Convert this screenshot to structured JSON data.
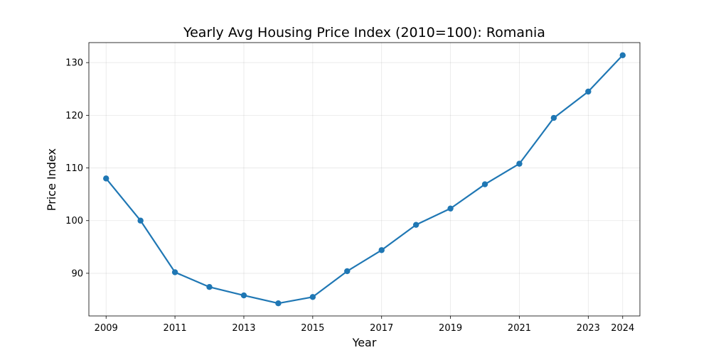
{
  "chart_data": {
    "type": "line",
    "title": "Yearly Avg Housing Price Index (2010=100): Romania",
    "xlabel": "Year",
    "ylabel": "Price Index",
    "x": [
      2009,
      2010,
      2011,
      2012,
      2013,
      2014,
      2015,
      2016,
      2017,
      2018,
      2019,
      2020,
      2021,
      2022,
      2023,
      2024
    ],
    "series": [
      {
        "values": [
          108.0,
          100.0,
          90.2,
          87.4,
          85.8,
          84.3,
          85.5,
          90.4,
          94.4,
          99.2,
          102.3,
          106.9,
          110.8,
          119.5,
          124.5,
          131.4
        ],
        "color": "#1f77b4"
      }
    ],
    "xticks": [
      2009,
      2011,
      2013,
      2015,
      2017,
      2019,
      2021,
      2023,
      2024
    ],
    "yticks": [
      90,
      100,
      110,
      120,
      130
    ],
    "xlim": [
      2008.5,
      2024.5
    ],
    "ylim": [
      81.9,
      133.8
    ],
    "grid": true,
    "markers": true
  }
}
